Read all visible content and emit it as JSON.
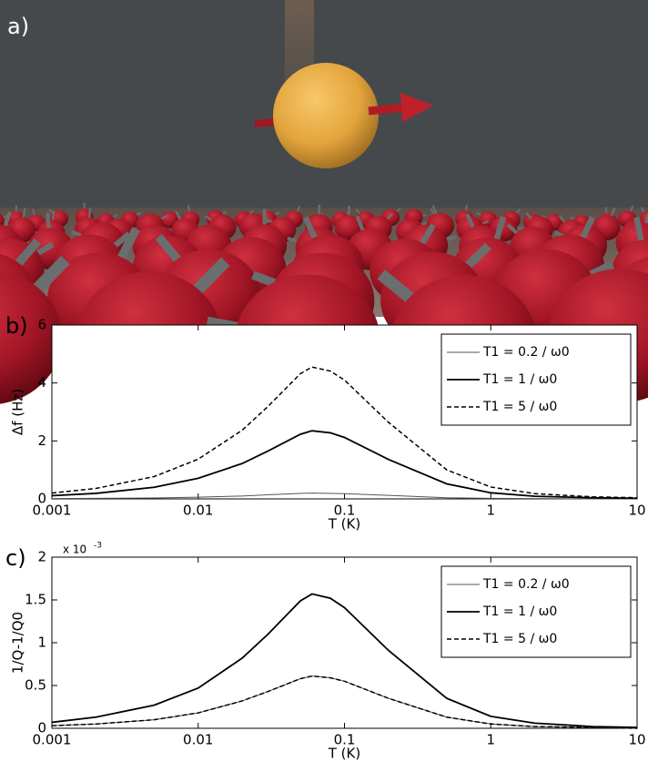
{
  "panel_a_label": "a)",
  "chart_data": [
    {
      "type": "line",
      "panel_label": "b)",
      "xlabel": "T (K)",
      "ylabel": "Δf (Hz)",
      "xscale": "log",
      "x": [
        0.001,
        0.002,
        0.005,
        0.01,
        0.02,
        0.03,
        0.05,
        0.06,
        0.08,
        0.1,
        0.2,
        0.5,
        1,
        2,
        5,
        10
      ],
      "xlim": [
        0.001,
        10
      ],
      "xticks": [
        0.001,
        0.01,
        0.1,
        1,
        10
      ],
      "ylim": [
        0,
        6
      ],
      "yticks": [
        0,
        2,
        4,
        6
      ],
      "legend": "upper right",
      "series": [
        {
          "name": "T1 = 0.2 / ω0",
          "color": "#555555",
          "style": "thin",
          "values": [
            0.01,
            0.02,
            0.03,
            0.06,
            0.1,
            0.14,
            0.19,
            0.2,
            0.19,
            0.18,
            0.12,
            0.04,
            0.02,
            0.01,
            0,
            0
          ]
        },
        {
          "name": "T1 = 1 / ω0",
          "color": "#000000",
          "style": "solid",
          "values": [
            0.11,
            0.19,
            0.4,
            0.71,
            1.22,
            1.65,
            2.23,
            2.35,
            2.28,
            2.12,
            1.36,
            0.52,
            0.21,
            0.09,
            0.04,
            0.02
          ]
        },
        {
          "name": "T1 = 5 / ω0",
          "color": "#000000",
          "style": "dashed",
          "values": [
            0.2,
            0.36,
            0.77,
            1.37,
            2.37,
            3.19,
            4.32,
            4.55,
            4.41,
            4.1,
            2.64,
            1.0,
            0.41,
            0.18,
            0.07,
            0.04
          ]
        }
      ]
    },
    {
      "type": "line",
      "panel_label": "c)",
      "xlabel": "T (K)",
      "ylabel": "1/Q-1/Q0",
      "xscale": "log",
      "y_multiplier": "x 10",
      "y_multiplier_power": "-3",
      "x": [
        0.001,
        0.002,
        0.005,
        0.01,
        0.02,
        0.03,
        0.05,
        0.06,
        0.08,
        0.1,
        0.2,
        0.5,
        1,
        2,
        5,
        10
      ],
      "xlim": [
        0.001,
        10
      ],
      "xticks": [
        0.001,
        0.01,
        0.1,
        1,
        10
      ],
      "ylim": [
        0,
        2
      ],
      "yticks": [
        0,
        0.5,
        1,
        1.5,
        2
      ],
      "legend": "upper right",
      "series": [
        {
          "name": "T1 = 0.2 / ω0",
          "color": "#555555",
          "style": "thin",
          "values": [
            0.03,
            0.05,
            0.1,
            0.18,
            0.32,
            0.43,
            0.58,
            0.61,
            0.59,
            0.55,
            0.35,
            0.13,
            0.05,
            0.02,
            0.01,
            0
          ]
        },
        {
          "name": "T1 = 1 / ω0",
          "color": "#000000",
          "style": "solid",
          "values": [
            0.07,
            0.13,
            0.27,
            0.47,
            0.82,
            1.1,
            1.49,
            1.57,
            1.52,
            1.41,
            0.91,
            0.35,
            0.14,
            0.06,
            0.02,
            0.01
          ]
        },
        {
          "name": "T1 = 5 / ω0",
          "color": "#000000",
          "style": "dashed",
          "values": [
            0.03,
            0.05,
            0.1,
            0.18,
            0.32,
            0.43,
            0.58,
            0.61,
            0.59,
            0.55,
            0.35,
            0.13,
            0.05,
            0.02,
            0.01,
            0
          ]
        }
      ]
    }
  ]
}
